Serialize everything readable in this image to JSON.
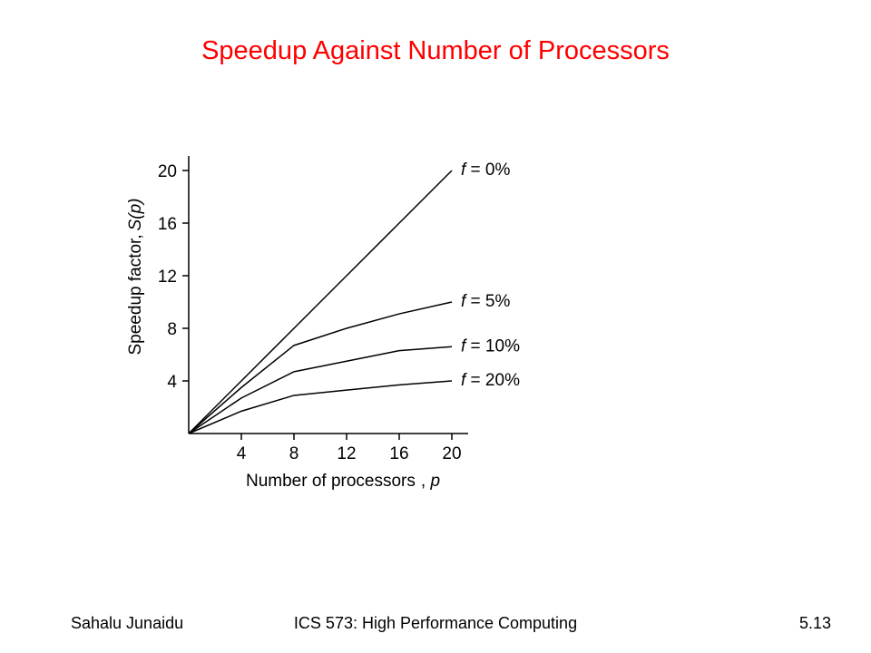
{
  "slide": {
    "title": "Speedup Against Number of Processors",
    "footer": {
      "author": "Sahalu Junaidu",
      "course": "ICS 573: High Performance Computing",
      "page": "5.13"
    }
  },
  "chart_data": {
    "type": "line",
    "title": "",
    "xlabel": "Number of processors",
    "xlabel_var": "p",
    "ylabel": "Speedup factor,",
    "ylabel_var": "S(p)",
    "xlim": [
      0,
      20
    ],
    "ylim": [
      0,
      20
    ],
    "xticks": [
      4,
      8,
      12,
      16,
      20
    ],
    "yticks": [
      4,
      8,
      12,
      16,
      20
    ],
    "grid": false,
    "legend": "inline-right",
    "x": [
      0,
      4,
      8,
      12,
      16,
      20
    ],
    "series": [
      {
        "name_var": "f",
        "name_rest": " = 0%",
        "values": [
          0,
          4,
          8,
          12,
          16,
          20
        ]
      },
      {
        "name_var": "f",
        "name_rest": " = 5%",
        "values": [
          0,
          3.5,
          6.7,
          8,
          9.1,
          10
        ]
      },
      {
        "name_var": "f",
        "name_rest": " = 10%",
        "values": [
          0,
          2.7,
          4.7,
          5.5,
          6.3,
          6.6
        ]
      },
      {
        "name_var": "f",
        "name_rest": " = 20%",
        "values": [
          0,
          1.7,
          2.9,
          3.3,
          3.7,
          4
        ]
      }
    ],
    "line_color": "#000000"
  }
}
